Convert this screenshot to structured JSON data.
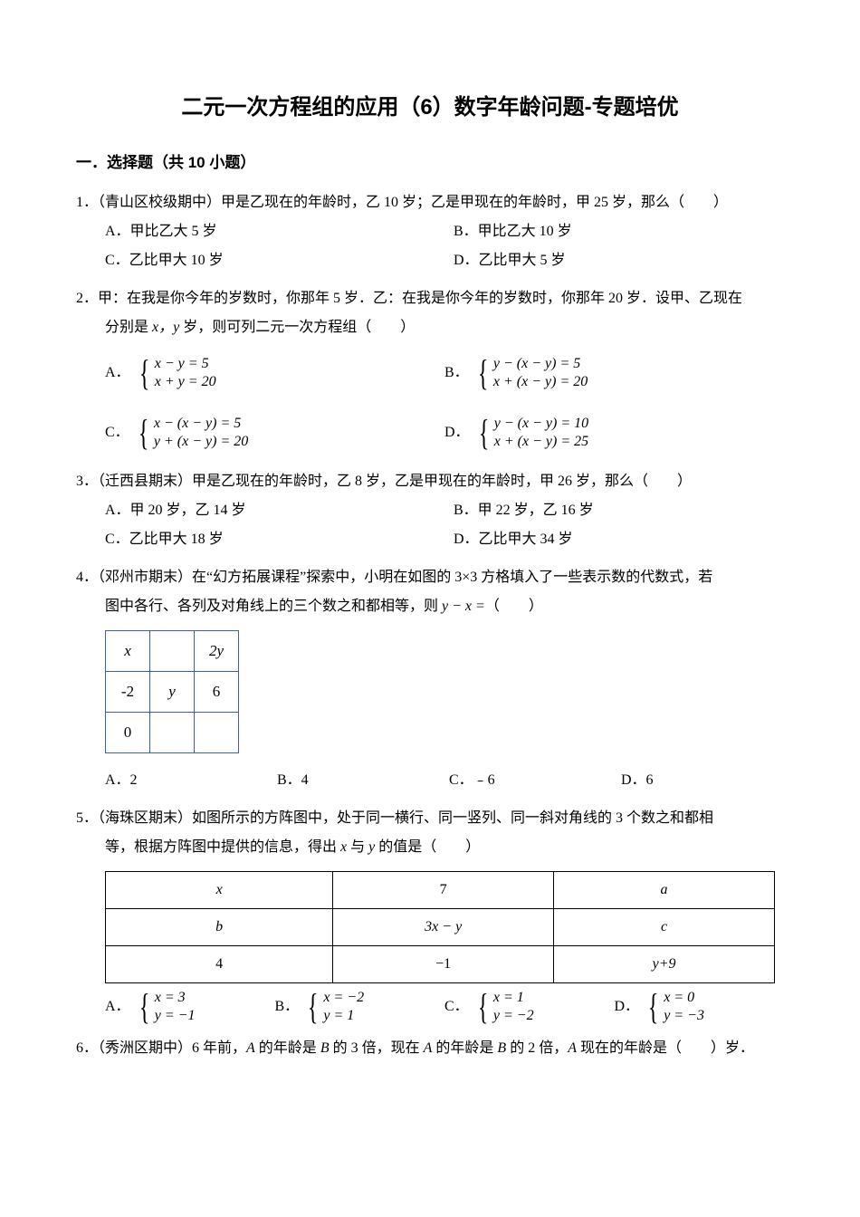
{
  "title": "二元一次方程组的应用（6）数字年龄问题-专题培优",
  "section_head": "一．选择题（共 10 小题）",
  "blank_paren": "（　　）",
  "q1": {
    "stem": "1．（青山区校级期中）甲是乙现在的年龄时，乙 10 岁；乙是甲现在的年龄时，甲 25 岁，那么",
    "A": "A．甲比乙大 5 岁",
    "B": "B．甲比乙大 10 岁",
    "C": "C．乙比甲大 10 岁",
    "D": "D．乙比甲大 5 岁"
  },
  "q2": {
    "stem1": "2．甲：在我是你今年的岁数时，你那年 5 岁．乙：在我是你今年的岁数时，你那年 20 岁．设甲、乙现在",
    "stem2_pre": "分别是 ",
    "stem2_xy": "x，y",
    "stem2_post": " 岁，则可列二元一次方程组",
    "A": {
      "label": "A．",
      "l1": "x − y = 5",
      "l2": "x + y = 20"
    },
    "B": {
      "label": "B．",
      "l1": "y − (x − y) = 5",
      "l2": "x + (x − y) = 20"
    },
    "C": {
      "label": "C．",
      "l1": "x − (x − y) = 5",
      "l2": "y + (x − y) = 20"
    },
    "D": {
      "label": "D．",
      "l1": "y − (x − y) = 10",
      "l2": "x + (x − y) = 25"
    }
  },
  "q3": {
    "stem": "3．（迁西县期末）甲是乙现在的年龄时，乙 8 岁，乙是甲现在的年龄时，甲 26 岁，那么",
    "A": "A．甲 20 岁，乙 14 岁",
    "B": "B．甲 22 岁，乙 16 岁",
    "C": "C．乙比甲大 18 岁",
    "D": "D．乙比甲大 34 岁"
  },
  "q4": {
    "stem1": "4．（邓州市期末）在“幻方拓展课程”探索中，小明在如图的 3×3 方格填入了一些表示数的代数式，若",
    "stem2_pre": "图中各行、各列及对角线上的三个数之和都相等，则 ",
    "stem2_expr": "y − x =",
    "grid": {
      "border_color": "#3a5fb0",
      "cells": [
        [
          "x",
          "",
          "2y"
        ],
        [
          "-2",
          "y",
          "6"
        ],
        [
          "0",
          "",
          ""
        ]
      ]
    },
    "A": "A．2",
    "B": "B．4",
    "C": "C．﹣6",
    "D": "D．6"
  },
  "q5": {
    "stem1": "5．（海珠区期末）如图所示的方阵图中，处于同一横行、同一竖列、同一斜对角线的 3 个数之和都相",
    "stem2_pre": "等，根据方阵图中提供的信息，得出 ",
    "stem2_x": "x",
    "stem2_mid": " 与 ",
    "stem2_y": "y",
    "stem2_post": " 的值是",
    "table": {
      "border_color": "#000000",
      "rows": [
        [
          "x",
          "7",
          "a"
        ],
        [
          "b",
          "3x − y",
          "c"
        ],
        [
          "4",
          "−1",
          "y+9"
        ]
      ]
    },
    "A": {
      "label": "A．",
      "l1": "x = 3",
      "l2": "y = −1"
    },
    "B": {
      "label": "B．",
      "l1": "x = −2",
      "l2": "y = 1"
    },
    "C": {
      "label": "C．",
      "l1": "x = 1",
      "l2": "y = −2"
    },
    "D": {
      "label": "D．",
      "l1": "x = 0",
      "l2": "y = −3"
    }
  },
  "q6": {
    "stem_pre": "6．（秀洲区期中）6 年前，",
    "A1": "A",
    "mid1": " 的年龄是 ",
    "B1": "B",
    "mid2": " 的 3 倍，现在 ",
    "A2": "A",
    "mid3": " 的年龄是 ",
    "B2": "B",
    "mid4": " 的 2 倍，",
    "A3": "A",
    "mid5": " 现在的年龄是",
    "tail": "岁．"
  }
}
